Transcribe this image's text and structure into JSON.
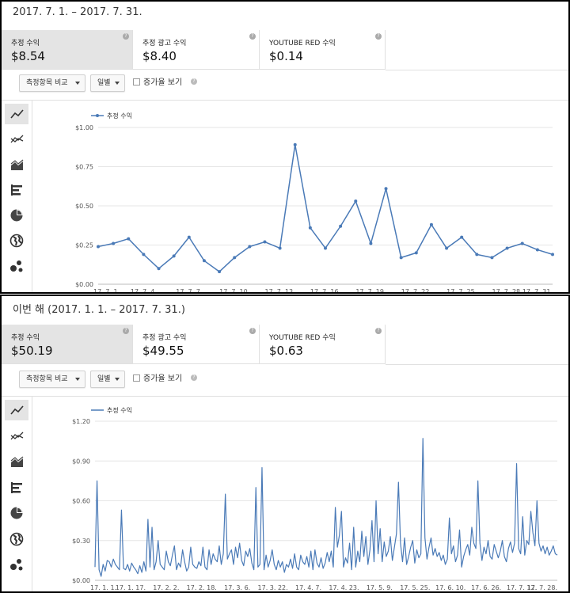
{
  "colors": {
    "line": "#4a7ab7",
    "active_tab": "#e4e4e4",
    "grid": "#e6e6e6"
  },
  "panel1": {
    "period": "2017. 7. 1. – 2017. 7. 31.",
    "metrics": [
      {
        "label": "추정 수익",
        "value": "$8.54"
      },
      {
        "label": "추정 광고 수익",
        "value": "$8.40"
      },
      {
        "label": "YOUTUBE RED 수익",
        "value": "$0.14"
      }
    ],
    "compare_label": "측정항목 비교",
    "interval_label": "일별",
    "growth_label": "증가율 보기",
    "sidebar_icons": [
      "line-chart-icon",
      "multi-line-icon",
      "area-chart-icon",
      "bar-chart-icon",
      "pie-chart-icon",
      "globe-icon",
      "bubble-chart-icon"
    ]
  },
  "panel2": {
    "period": "이번 해 (2017. 1. 1. – 2017. 7. 31.)",
    "metrics": [
      {
        "label": "추정 수익",
        "value": "$50.19"
      },
      {
        "label": "추정 광고 수익",
        "value": "$49.55"
      },
      {
        "label": "YOUTUBE RED 수익",
        "value": "$0.63"
      }
    ],
    "compare_label": "측정항목 비교",
    "interval_label": "일별",
    "growth_label": "증가율 보기",
    "sidebar_icons": [
      "line-chart-icon",
      "multi-line-icon",
      "area-chart-icon",
      "bar-chart-icon",
      "pie-chart-icon",
      "globe-icon",
      "bubble-chart-icon"
    ]
  },
  "chart_data": [
    {
      "type": "line",
      "series": [
        {
          "name": "추정 수익",
          "values": [
            0.24,
            0.26,
            0.29,
            0.19,
            0.1,
            0.18,
            0.3,
            0.15,
            0.08,
            0.17,
            0.24,
            0.27,
            0.23,
            0.89,
            0.36,
            0.23,
            0.37,
            0.53,
            0.26,
            0.61,
            0.17,
            0.2,
            0.38,
            0.23,
            0.3,
            0.19,
            0.17,
            0.23,
            0.26,
            0.22,
            0.19
          ]
        }
      ],
      "x_tick_labels": [
        "17. 7. 1.",
        "17. 7. 4.",
        "17. 7. 7.",
        "17. 7. 10.",
        "17. 7. 13.",
        "17. 7. 16.",
        "17. 7. 19.",
        "17. 7. 22.",
        "17. 7. 25.",
        "17. 7. 28.",
        "17. 7. 31."
      ],
      "y_tick_labels": [
        "$0.00",
        "$0.25",
        "$0.50",
        "$0.75",
        "$1.00"
      ],
      "ylim": [
        0,
        1.0
      ],
      "legend": "top-left"
    },
    {
      "type": "line",
      "series": [
        {
          "name": "추정 수익",
          "values": [
            0.1,
            0.75,
            0.08,
            0.03,
            0.12,
            0.07,
            0.15,
            0.14,
            0.1,
            0.16,
            0.12,
            0.1,
            0.08,
            0.53,
            0.09,
            0.08,
            0.12,
            0.07,
            0.13,
            0.1,
            0.08,
            0.05,
            0.11,
            0.06,
            0.14,
            0.07,
            0.46,
            0.1,
            0.4,
            0.08,
            0.14,
            0.3,
            0.12,
            0.1,
            0.08,
            0.22,
            0.14,
            0.11,
            0.19,
            0.26,
            0.08,
            0.13,
            0.1,
            0.23,
            0.14,
            0.07,
            0.1,
            0.25,
            0.12,
            0.1,
            0.09,
            0.14,
            0.11,
            0.25,
            0.1,
            0.08,
            0.23,
            0.12,
            0.2,
            0.16,
            0.14,
            0.26,
            0.12,
            0.2,
            0.65,
            0.16,
            0.2,
            0.23,
            0.12,
            0.25,
            0.17,
            0.28,
            0.15,
            0.11,
            0.22,
            0.18,
            0.24,
            0.13,
            0.08,
            0.7,
            0.1,
            0.12,
            0.85,
            0.08,
            0.19,
            0.1,
            0.15,
            0.23,
            0.12,
            0.08,
            0.15,
            0.1,
            0.14,
            0.06,
            0.12,
            0.1,
            0.16,
            0.09,
            0.2,
            0.1,
            0.08,
            0.19,
            0.14,
            0.12,
            0.18,
            0.1,
            0.22,
            0.08,
            0.23,
            0.13,
            0.1,
            0.17,
            0.09,
            0.13,
            0.21,
            0.14,
            0.22,
            0.1,
            0.55,
            0.25,
            0.34,
            0.52,
            0.1,
            0.17,
            0.13,
            0.28,
            0.08,
            0.4,
            0.1,
            0.22,
            0.14,
            0.37,
            0.18,
            0.33,
            0.12,
            0.23,
            0.45,
            0.14,
            0.6,
            0.2,
            0.39,
            0.14,
            0.29,
            0.18,
            0.22,
            0.33,
            0.15,
            0.25,
            0.35,
            0.74,
            0.28,
            0.14,
            0.32,
            0.12,
            0.18,
            0.25,
            0.3,
            0.13,
            0.23,
            0.17,
            0.2,
            1.07,
            0.32,
            0.16,
            0.25,
            0.32,
            0.19,
            0.24,
            0.18,
            0.21,
            0.15,
            0.19,
            0.12,
            0.16,
            0.47,
            0.2,
            0.26,
            0.14,
            0.19,
            0.38,
            0.1,
            0.18,
            0.23,
            0.27,
            0.19,
            0.4,
            0.28,
            0.24,
            0.75,
            0.28,
            0.15,
            0.25,
            0.2,
            0.3,
            0.18,
            0.16,
            0.27,
            0.22,
            0.17,
            0.22,
            0.3,
            0.18,
            0.14,
            0.24,
            0.29,
            0.21,
            0.28,
            0.88,
            0.24,
            0.2,
            0.48,
            0.19,
            0.3,
            0.27,
            0.52,
            0.36,
            0.26,
            0.6,
            0.28,
            0.22,
            0.26,
            0.2,
            0.25,
            0.19,
            0.22,
            0.26,
            0.2,
            0.19
          ]
        }
      ],
      "x_tick_labels": [
        "17. 1. 1.",
        "17. 1. 17.",
        "17. 2. 2.",
        "17. 2. 18.",
        "17. 3. 6.",
        "17. 3. 22.",
        "17. 4. 7.",
        "17. 4. 23.",
        "17. 5. 9.",
        "17. 5. 25.",
        "17. 6. 10.",
        "17. 6. 26.",
        "17. 7. 12.",
        "17. 7. 28."
      ],
      "y_tick_labels": [
        "$0.00",
        "$0.30",
        "$0.60",
        "$0.90",
        "$1.20"
      ],
      "ylim": [
        0,
        1.2
      ],
      "legend": "top-left"
    }
  ]
}
